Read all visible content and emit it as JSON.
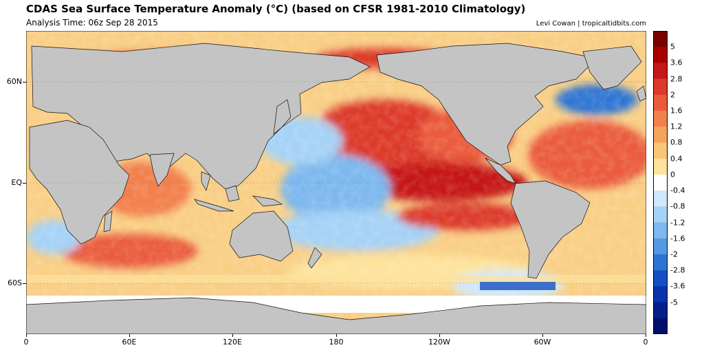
{
  "header": {
    "title": "CDAS Sea Surface Temperature Anomaly (°C) (based on CFSR 1981-2010 Climatology)",
    "subtitle": "Analysis Time: 06z Sep 28 2015",
    "credit": "Levi Cowan | tropicaltidbits.com"
  },
  "map": {
    "y_labels": [
      "60N",
      "EQ",
      "60S"
    ],
    "x_labels": [
      "0",
      "60E",
      "120E",
      "180",
      "120W",
      "60W",
      "0"
    ],
    "land_color": "#c4c4c4",
    "ice_color": "#ffffff"
  },
  "colorbar": {
    "labels": [
      "5",
      "3.6",
      "2.8",
      "2",
      "1.6",
      "1.2",
      "0.8",
      "0.4",
      "0",
      "-0.4",
      "-0.8",
      "-1.2",
      "-1.6",
      "-2",
      "-2.8",
      "-3.6",
      "-5"
    ],
    "colors": [
      "#7a0000",
      "#a80000",
      "#c61818",
      "#dc3a2a",
      "#ea5b3c",
      "#f2804e",
      "#f6a35e",
      "#fac676",
      "#fde39c",
      "#ffffff",
      "#cfe8fb",
      "#a6d2f6",
      "#7db8ee",
      "#5599e2",
      "#2e74d4",
      "#1450c4",
      "#0833aa",
      "#041f8a",
      "#00106a"
    ]
  }
}
